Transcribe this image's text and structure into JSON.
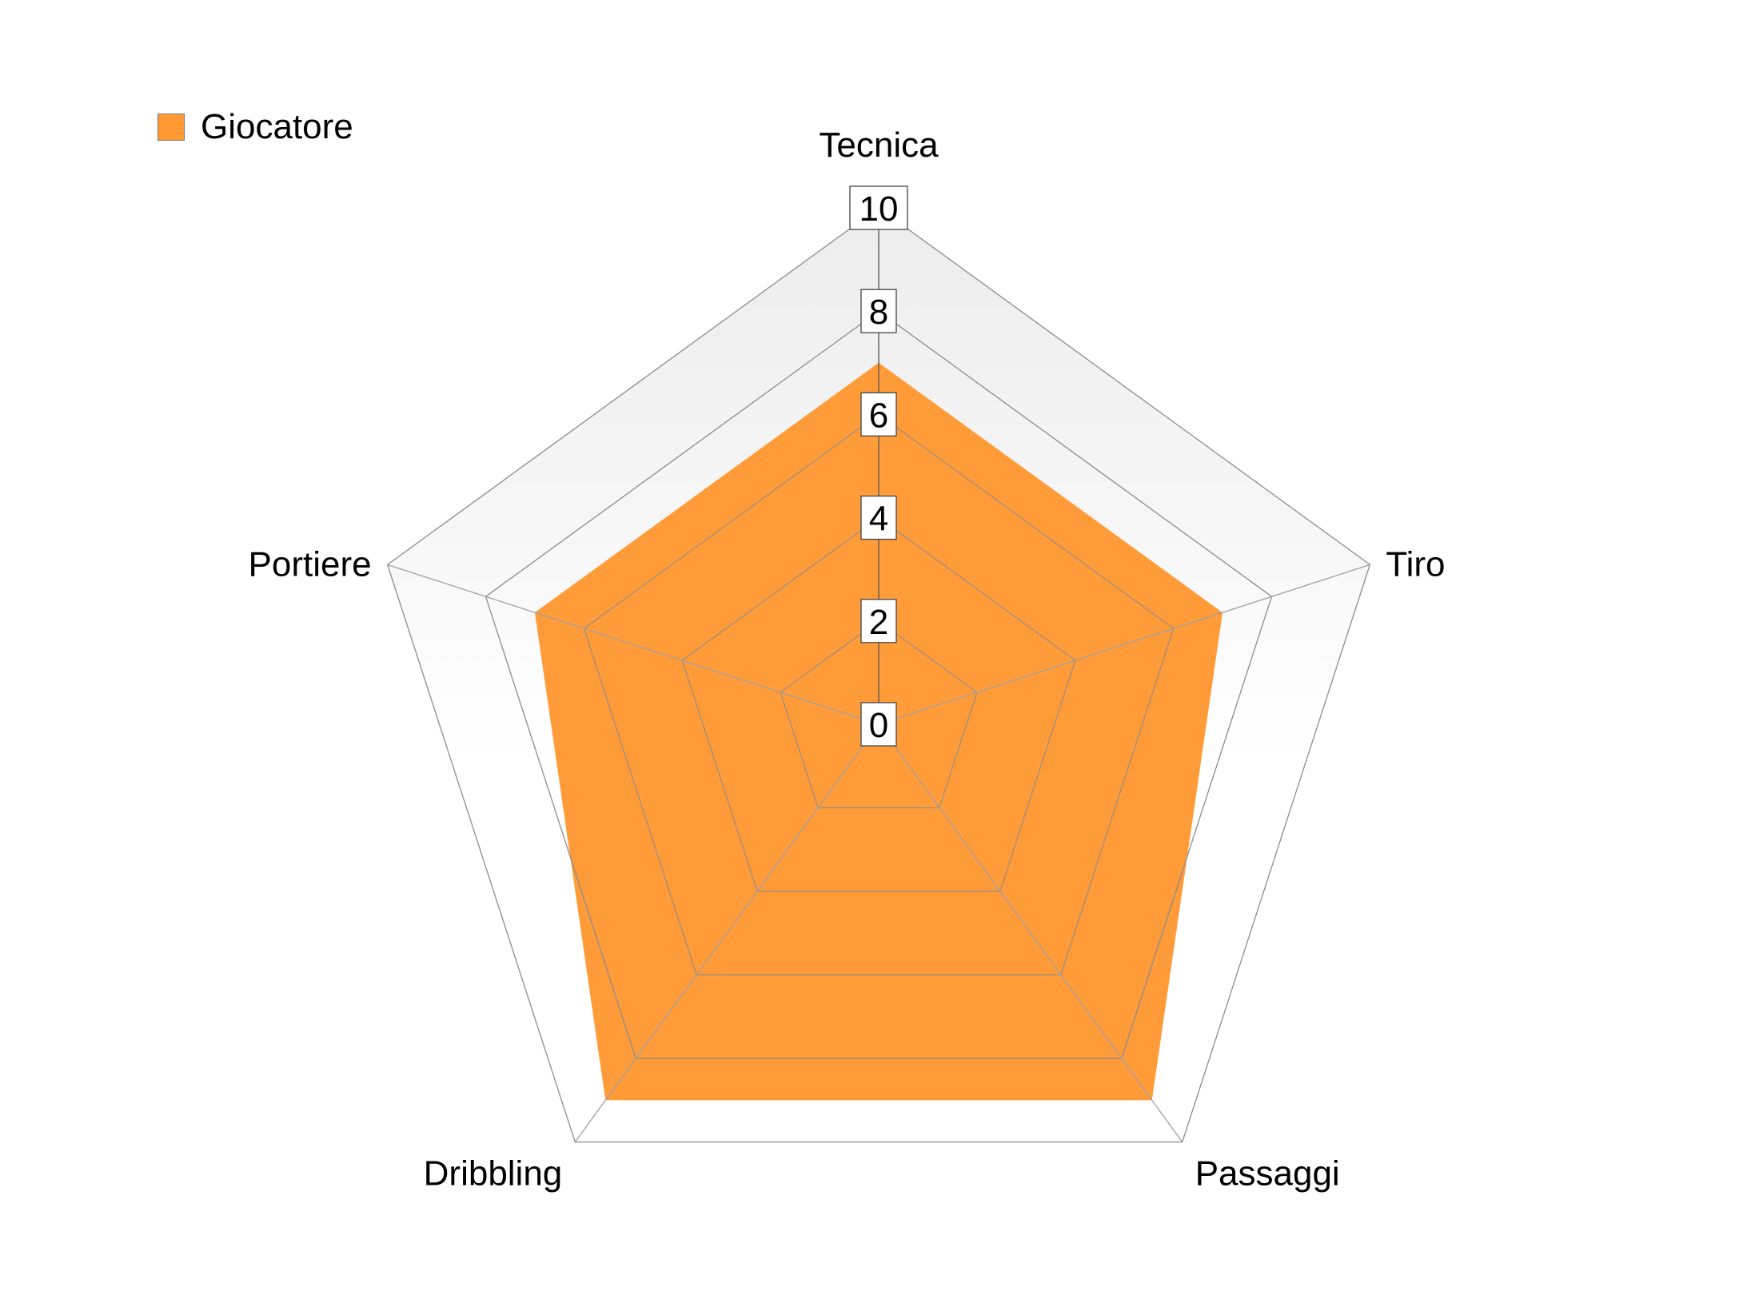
{
  "chart_data": {
    "type": "radar",
    "categories": [
      "Tecnica",
      "Tiro",
      "Passaggi",
      "Dribbling",
      "Portiere"
    ],
    "series": [
      {
        "name": "Giocatore",
        "values": [
          7,
          7,
          9,
          9,
          7
        ],
        "color": "#FF9933"
      }
    ],
    "rlim": [
      0,
      10
    ],
    "ticks": [
      "0",
      "2",
      "4",
      "6",
      "8",
      "10"
    ],
    "tick_values": [
      0,
      2,
      4,
      6,
      8,
      10
    ],
    "grid": true,
    "legend_position": "top-left",
    "colors": {
      "background_top": "#ececec",
      "background_bottom": "#ffffff",
      "grid": "#a0a0a0",
      "spoke": "#555555"
    }
  }
}
